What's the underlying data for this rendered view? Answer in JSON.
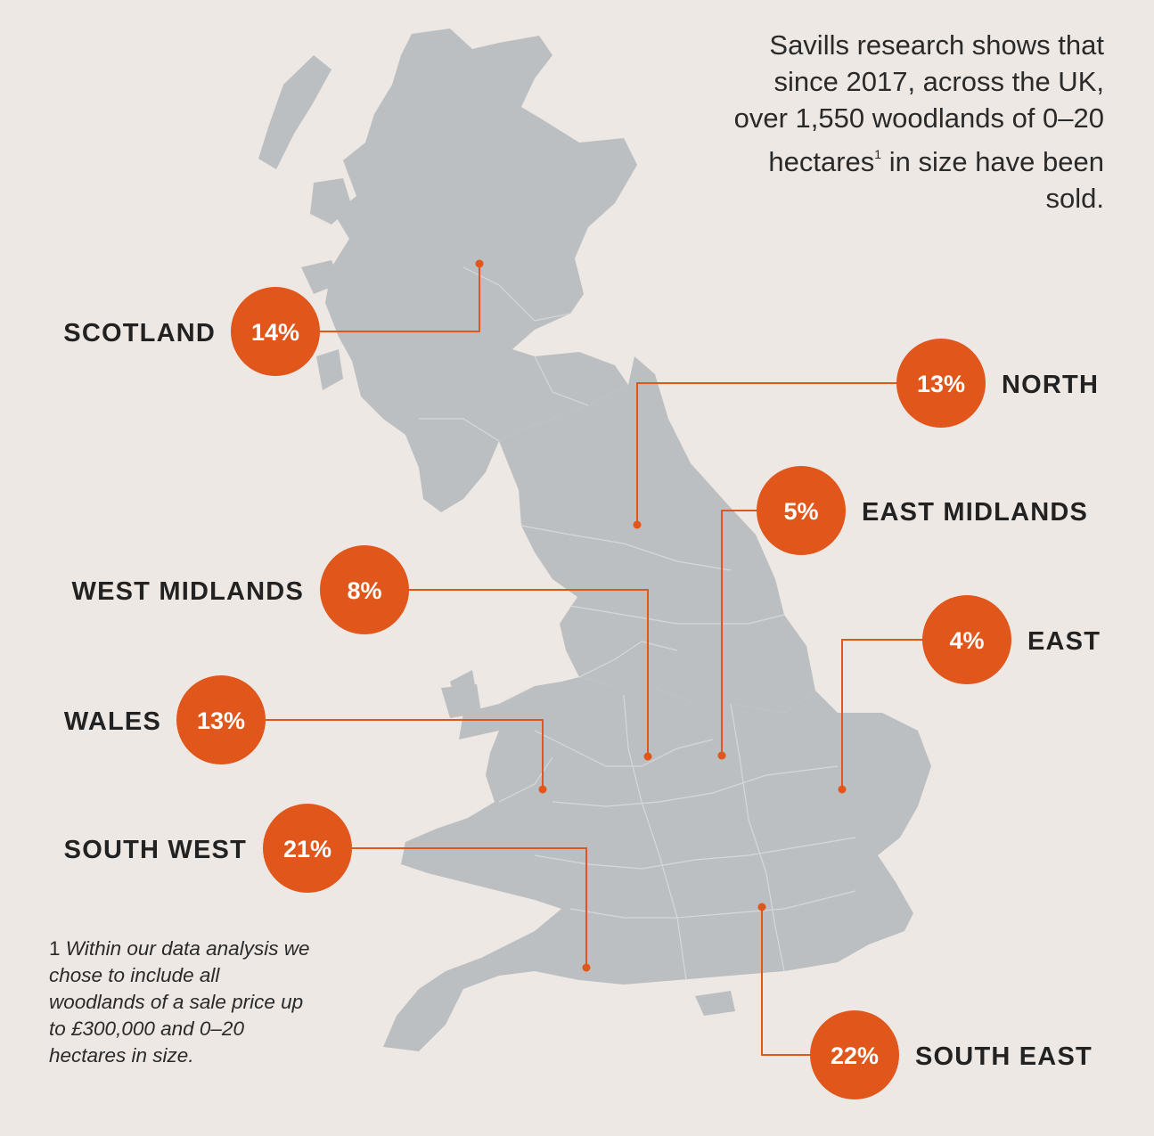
{
  "intro": {
    "text_before_sup": "Savills research shows that since 2017, across the UK, over 1,550 woodlands of 0–20 hectares",
    "sup": "1",
    "text_after_sup": " in size have been sold."
  },
  "footnote": {
    "number": "1",
    "text": "Within our data analysis we chose to include all woodlands of a sale price up to £300,000 and 0–20 hectares in size."
  },
  "colors": {
    "background": "#ede8e4",
    "land": "#bcbfc1",
    "accent": "#e0561b"
  },
  "regions": [
    {
      "id": "scotland",
      "name": "SCOTLAND",
      "value": "14%",
      "pct": 14
    },
    {
      "id": "north",
      "name": "NORTH",
      "value": "13%",
      "pct": 13
    },
    {
      "id": "east-midlands",
      "name": "EAST MIDLANDS",
      "value": "5%",
      "pct": 5
    },
    {
      "id": "west-midlands",
      "name": "WEST MIDLANDS",
      "value": "8%",
      "pct": 8
    },
    {
      "id": "east",
      "name": "EAST",
      "value": "4%",
      "pct": 4
    },
    {
      "id": "wales",
      "name": "WALES",
      "value": "13%",
      "pct": 13
    },
    {
      "id": "south-west",
      "name": "SOUTH WEST",
      "value": "21%",
      "pct": 21
    },
    {
      "id": "south-east",
      "name": "SOUTH EAST",
      "value": "22%",
      "pct": 22
    }
  ]
}
